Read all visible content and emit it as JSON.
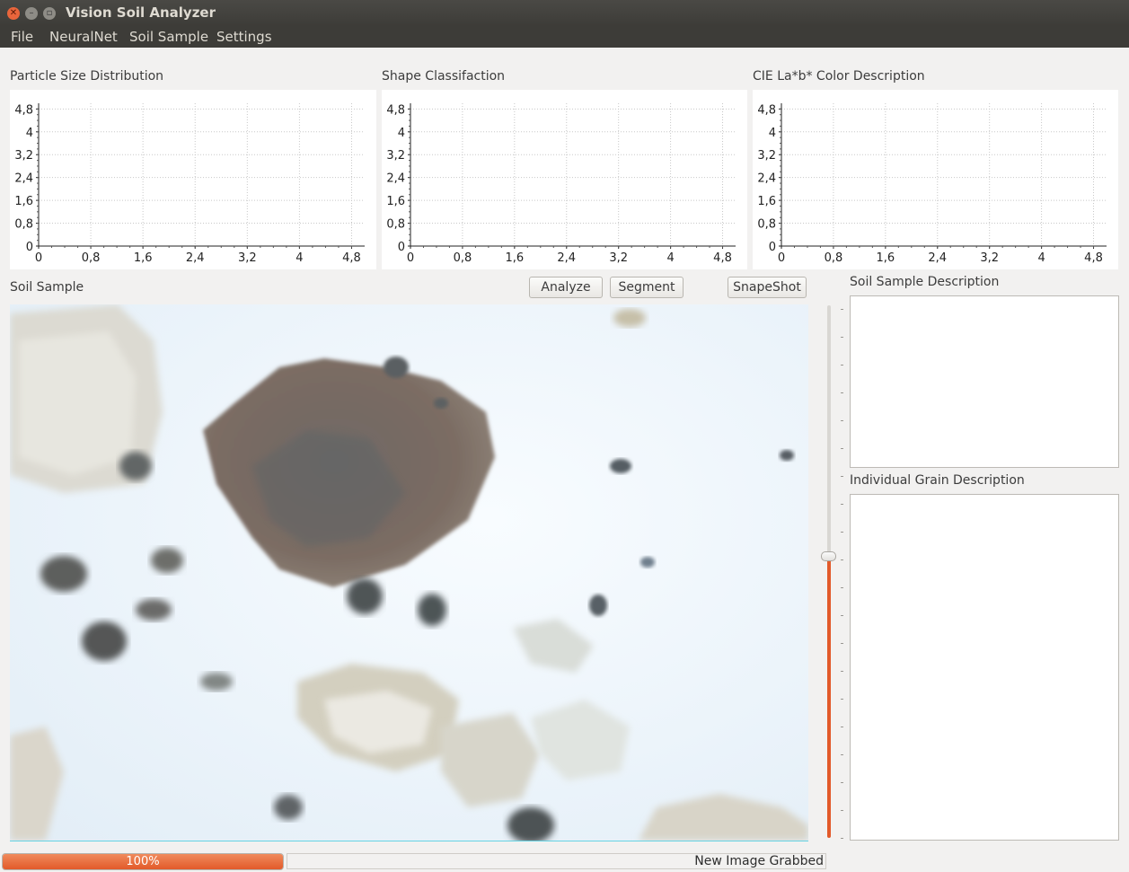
{
  "window": {
    "title": "Vision Soil Analyzer"
  },
  "menu": [
    "File",
    "NeuralNet",
    "Soil Sample",
    "Settings"
  ],
  "charts": [
    {
      "title": "Particle Size Distribution"
    },
    {
      "title": "Shape Classifaction"
    },
    {
      "title": "CIE La*b* Color Description"
    }
  ],
  "chart_data": [
    {
      "type": "line",
      "title": "Particle Size Distribution",
      "xlim": [
        0,
        5
      ],
      "ylim": [
        0,
        5
      ],
      "xticks": [
        "0",
        "0,8",
        "1,6",
        "2,4",
        "3,2",
        "4",
        "4,8"
      ],
      "yticks": [
        "0",
        "0,8",
        "1,6",
        "2,4",
        "3,2",
        "4",
        "4,8"
      ],
      "grid": true,
      "series": []
    },
    {
      "type": "line",
      "title": "Shape Classifaction",
      "xlim": [
        0,
        5
      ],
      "ylim": [
        0,
        5
      ],
      "xticks": [
        "0",
        "0,8",
        "1,6",
        "2,4",
        "3,2",
        "4",
        "4,8"
      ],
      "yticks": [
        "0",
        "0,8",
        "1,6",
        "2,4",
        "3,2",
        "4",
        "4,8"
      ],
      "grid": true,
      "series": []
    },
    {
      "type": "line",
      "title": "CIE La*b* Color Description",
      "xlim": [
        0,
        5
      ],
      "ylim": [
        0,
        5
      ],
      "xticks": [
        "0",
        "0,8",
        "1,6",
        "2,4",
        "3,2",
        "4",
        "4,8"
      ],
      "yticks": [
        "0",
        "0,8",
        "1,6",
        "2,4",
        "3,2",
        "4",
        "4,8"
      ],
      "grid": true,
      "series": []
    }
  ],
  "sample": {
    "label": "Soil Sample",
    "analyze_label": "Analyze",
    "segment_label": "Segment",
    "snapshot_label": "SnapeShot"
  },
  "descriptions": {
    "sample_label": "Soil Sample Description",
    "sample_text": "",
    "grain_label": "Individual Grain Description",
    "grain_text": ""
  },
  "slider": {
    "value": 0.52,
    "accent": "#e25a2a"
  },
  "status": {
    "progress_value": 100,
    "progress_label": "100%",
    "message": "New Image Grabbed"
  },
  "colors": {
    "titlebar": "#3d3c38",
    "accent": "#e25a2a",
    "window_bg": "#f2f1f0"
  }
}
